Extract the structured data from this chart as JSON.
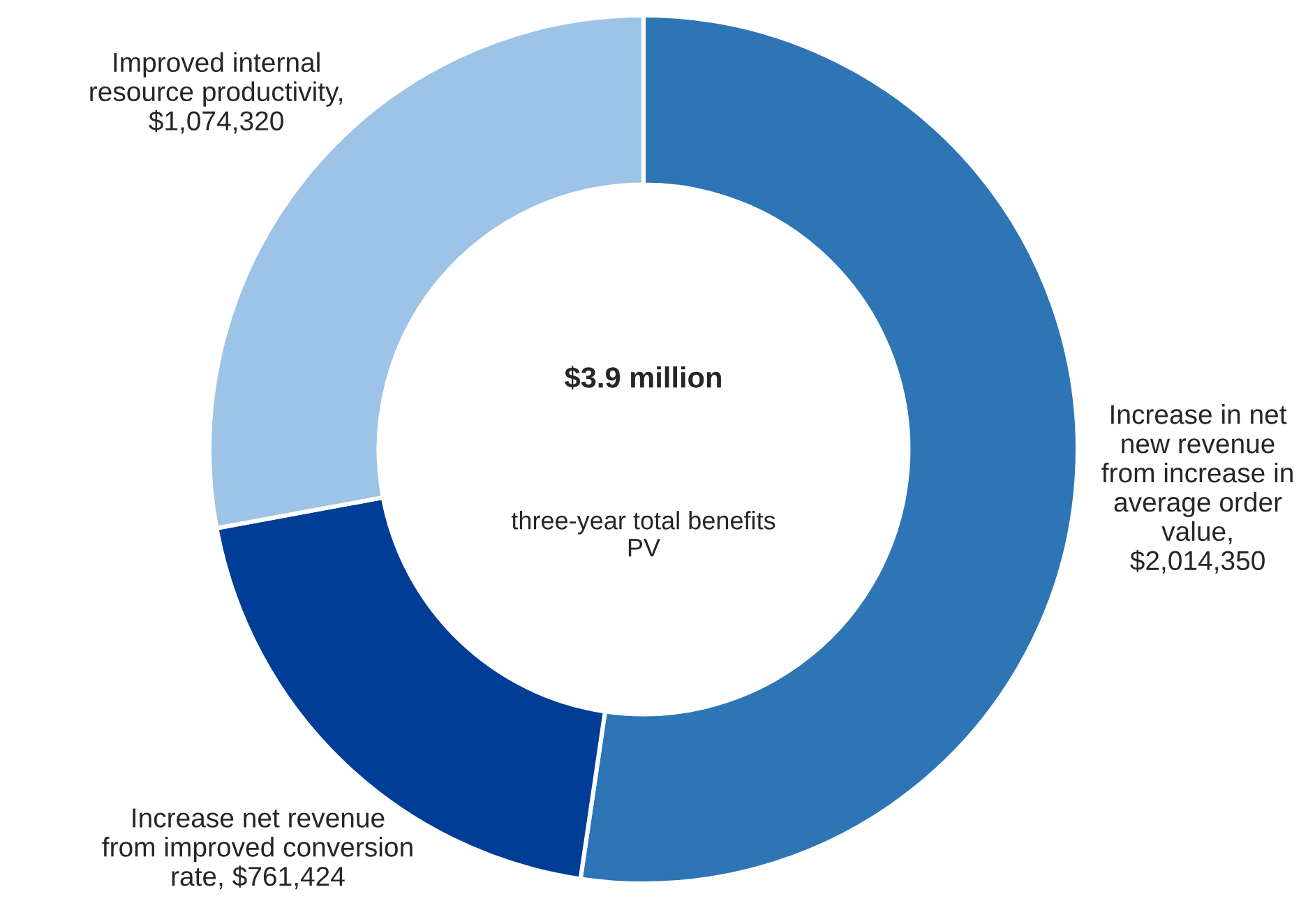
{
  "chart_data": {
    "type": "donut",
    "categories": [
      "Increase in net\nnew revenue\nfrom increase in\naverage order\nvalue,\n$2,014,350",
      "Increase net revenue\nfrom improved conversion\nrate, $761,424",
      "Improved internal\nresource productivity,\n$1,074,320"
    ],
    "values": [
      2014350,
      761424,
      1074320
    ],
    "colors": [
      "#2e75b6",
      "#003d97",
      "#9dc3e6"
    ],
    "annotations": [
      "$3.9 million",
      "three-year total benefits\nPV"
    ],
    "legend": false
  }
}
